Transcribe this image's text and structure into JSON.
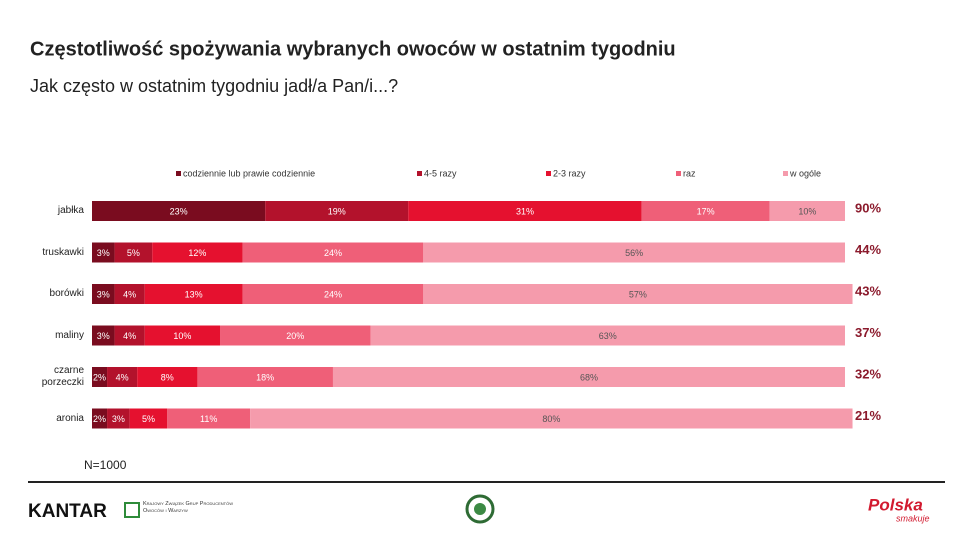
{
  "chart_data": {
    "type": "stacked-bar-horizontal",
    "title": "Częstotliwość spożywania wybranych owoców w ostatnim tygodniu",
    "subtitle": "Jak często w ostatnim tygodniu jadł/a Pan/i...?",
    "categories": [
      "jabłka",
      "truskawki",
      "borówki",
      "maliny",
      "czarne porzeczki",
      "aronia"
    ],
    "xlim": [
      0,
      100
    ],
    "legend": "top",
    "series": [
      {
        "name": "codziennie lub prawie codziennie",
        "color": "#7a0c1f",
        "values": [
          23,
          3,
          3,
          3,
          2,
          2
        ],
        "value_labels": [
          "23%",
          "3%",
          "3%",
          "3%",
          "2%",
          "2%"
        ]
      },
      {
        "name": "4-5 razy",
        "color": "#b3122c",
        "values": [
          19,
          5,
          4,
          4,
          4,
          3
        ],
        "value_labels": [
          "19%",
          "5%",
          "4%",
          "4%",
          "4%",
          "3%"
        ]
      },
      {
        "name": "2-3 razy",
        "color": "#e5112f",
        "values": [
          31,
          12,
          13,
          10,
          8,
          5
        ],
        "value_labels": [
          "31%",
          "12%",
          "13%",
          "10%",
          "8%",
          "5%"
        ]
      },
      {
        "name": "raz",
        "color": "#ef5f78",
        "values": [
          17,
          24,
          24,
          20,
          18,
          11
        ],
        "value_labels": [
          "17%",
          "24%",
          "24%",
          "20%",
          "18%",
          "11%"
        ]
      },
      {
        "name": "w ogóle",
        "color": "#f59bac",
        "values": [
          10,
          56,
          57,
          63,
          68,
          80
        ],
        "value_labels": [
          "10%",
          "56%",
          "57%",
          "63%",
          "68%",
          "80%"
        ]
      }
    ],
    "totals": {
      "values": [
        90,
        44,
        43,
        37,
        32,
        21
      ],
      "value_labels": [
        "90%",
        "44%",
        "43%",
        "37%",
        "32%",
        "21%"
      ]
    },
    "note": "N=1000"
  },
  "footer": {
    "logo_left": "KANTAR",
    "logo_partner": "Krajowy Związek Grup Producentów Owoców i Warzyw",
    "logo_right": "Polska",
    "logo_right_sub": "smakuje"
  }
}
